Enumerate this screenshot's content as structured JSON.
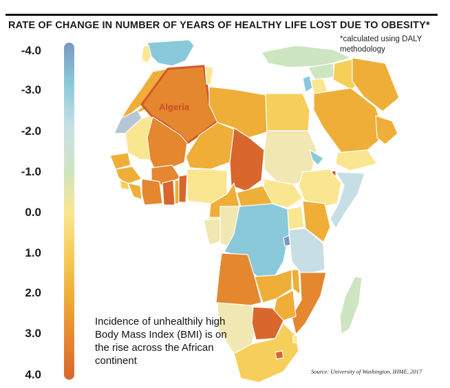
{
  "title": "RATE OF CHANGE IN NUMBER OF YEARS OF HEALTHY LIFE LOST DUE TO OBESITY*",
  "note": "*calculated using DALY methodology",
  "legend": {
    "ticks": [
      "-4.0",
      "-3.0",
      "-2.0",
      "-1.0",
      "0.0",
      "1.0",
      "2.0",
      "3.0",
      "4.0"
    ],
    "min": -4.0,
    "max": 4.0,
    "colors": [
      "#7b98c2",
      "#89c9d9",
      "#c7dfe4",
      "#cde5c0",
      "#fae691",
      "#f6cf5b",
      "#efae38",
      "#e5872e",
      "#d9662c"
    ]
  },
  "highlight": {
    "label": "Algeria"
  },
  "caption": "Incidence of unhealthily high Body Mass Index (BMI) is on the rise across the African continent",
  "source": "Source: University of Washington, IHME, 2017"
}
